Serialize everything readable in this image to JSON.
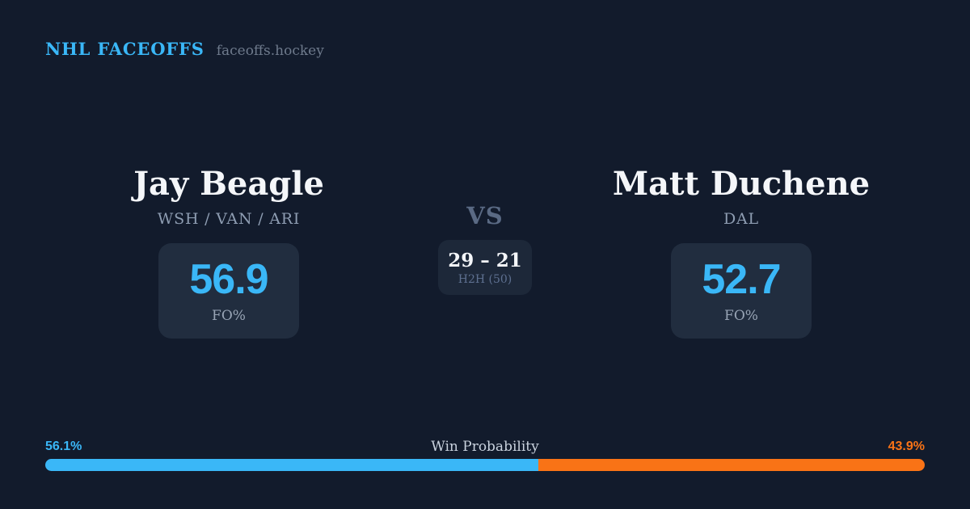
{
  "header": {
    "brand": "NHL FACEOFFS",
    "site": "faceoffs.hockey"
  },
  "matchup": {
    "left": {
      "name": "Jay Beagle",
      "teams": "WSH / VAN / ARI",
      "stat_value": "56.9",
      "stat_label": "FO%"
    },
    "versus": {
      "label": "VS",
      "h2h_score": "29 – 21",
      "h2h_label": "H2H (50)"
    },
    "right": {
      "name": "Matt Duchene",
      "teams": "DAL",
      "stat_value": "52.7",
      "stat_label": "FO%"
    }
  },
  "win_probability": {
    "label": "Win Probability",
    "left_pct_label": "56.1%",
    "right_pct_label": "43.9%",
    "left_value": 56.1,
    "right_value": 43.9
  },
  "colors": {
    "background": "#121b2c",
    "panel": "#212d3f",
    "h2h_panel": "#1d2839",
    "accent_blue": "#3ab7f7",
    "accent_orange": "#f97316",
    "text_primary": "#f4f6f9",
    "text_muted": "#8e9db2"
  }
}
